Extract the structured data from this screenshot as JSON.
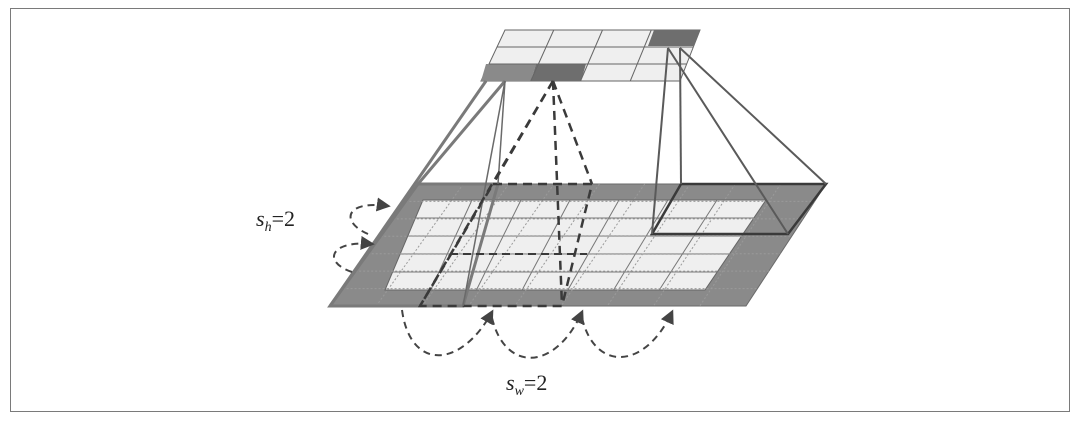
{
  "labels": {
    "stride_h": {
      "var": "s",
      "sub": "h",
      "eq": "=",
      "value": "2"
    },
    "stride_w": {
      "var": "s",
      "sub": "w",
      "eq": "=",
      "value": "2"
    }
  },
  "colors": {
    "grid_fill": "#efefef",
    "padding_fill": "#8a8a8a",
    "highlight_fill": "#6e6e6e",
    "line_dark": "#3a3a3a",
    "line_mid": "#6a6a6a",
    "dashed": "#444444"
  }
}
